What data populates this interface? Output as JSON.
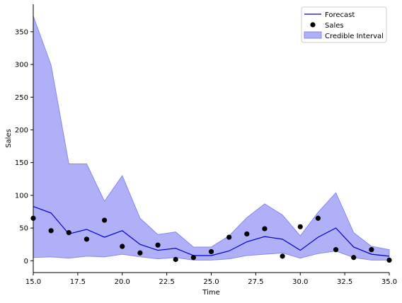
{
  "chart_data": {
    "type": "line",
    "xlabel": "Time",
    "ylabel": "Sales",
    "xlim": [
      15.0,
      35.0
    ],
    "ylim": [
      -18,
      392
    ],
    "xticks": [
      15.0,
      17.5,
      20.0,
      22.5,
      25.0,
      27.5,
      30.0,
      32.5,
      35.0
    ],
    "xtick_labels": [
      "15.0",
      "17.5",
      "20.0",
      "22.5",
      "25.0",
      "27.5",
      "30.0",
      "32.5",
      "35.0"
    ],
    "yticks": [
      0,
      50,
      100,
      150,
      200,
      250,
      300,
      350
    ],
    "ytick_labels": [
      "0",
      "50",
      "100",
      "150",
      "200",
      "250",
      "300",
      "350"
    ],
    "grid": false,
    "legend_position": "top-right",
    "legend": [
      "Forecast",
      "Sales",
      "Credible Interval"
    ],
    "x": [
      15,
      16,
      17,
      18,
      19,
      20,
      21,
      22,
      23,
      24,
      25,
      26,
      27,
      28,
      29,
      30,
      31,
      32,
      33,
      34,
      35
    ],
    "forecast": [
      83,
      73,
      41,
      48,
      36,
      46,
      25,
      16,
      19,
      8,
      8,
      15,
      29,
      37,
      33,
      16,
      36,
      50,
      21,
      10,
      7
    ],
    "sales": [
      65,
      46,
      43,
      33,
      62,
      22,
      12,
      24,
      2,
      5,
      14,
      36,
      41,
      49,
      7,
      52,
      65,
      17,
      5,
      17,
      1
    ],
    "interval_upper": [
      374,
      299,
      148,
      148,
      91,
      130,
      65,
      40,
      44,
      21,
      21,
      38,
      66,
      87,
      70,
      38,
      74,
      104,
      43,
      22,
      17
    ],
    "interval_lower": [
      5,
      6,
      4,
      7,
      6,
      10,
      6,
      3,
      5,
      1,
      1,
      3,
      8,
      10,
      12,
      4,
      11,
      15,
      5,
      1,
      1
    ],
    "colors": {
      "forecast": "#0000cc",
      "sales": "#000000",
      "interval_fill": "#b0b0f8",
      "interval_edge": "#8888ee"
    }
  }
}
